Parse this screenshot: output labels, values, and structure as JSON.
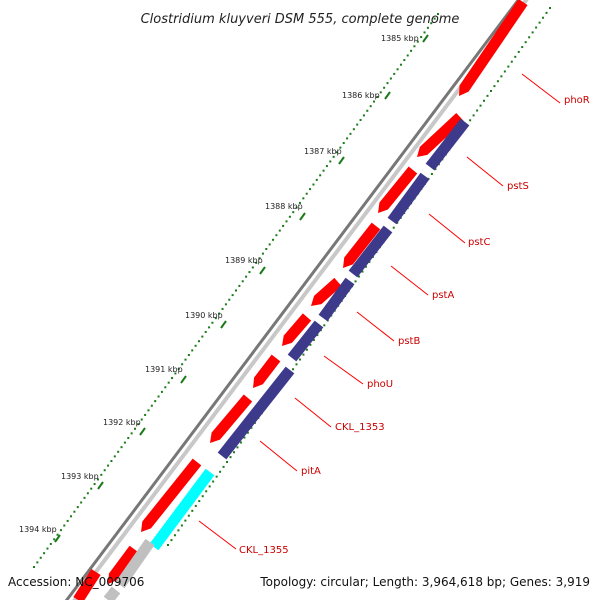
{
  "title": "Clostridium kluyveri DSM 555, complete genome",
  "footer": {
    "accession": "Accession: NC_009706",
    "summary": "Topology: circular; Length: 3,964,618 bp; Genes: 3,919"
  },
  "colors": {
    "backbone": "#888888",
    "forward_cds": "#ff0000",
    "gene_track": "#3d3a8c",
    "rna_track": "#00ffff",
    "other_track": "#c0c0c0",
    "tick": "#1a7a1a",
    "label_line": "#ff0000",
    "label_text": "#cc0000"
  },
  "kbp_labels": [
    "1385 kbp",
    "1386 kbp",
    "1387 kbp",
    "1388 kbp",
    "1389 kbp",
    "1390 kbp",
    "1391 kbp",
    "1392 kbp",
    "1393 kbp",
    "1394 kbp"
  ],
  "gene_labels": [
    "phoR",
    "pstS",
    "pstC",
    "pstA",
    "pstB",
    "phoU",
    "CKL_1353",
    "pitA",
    "CKL_1355"
  ]
}
